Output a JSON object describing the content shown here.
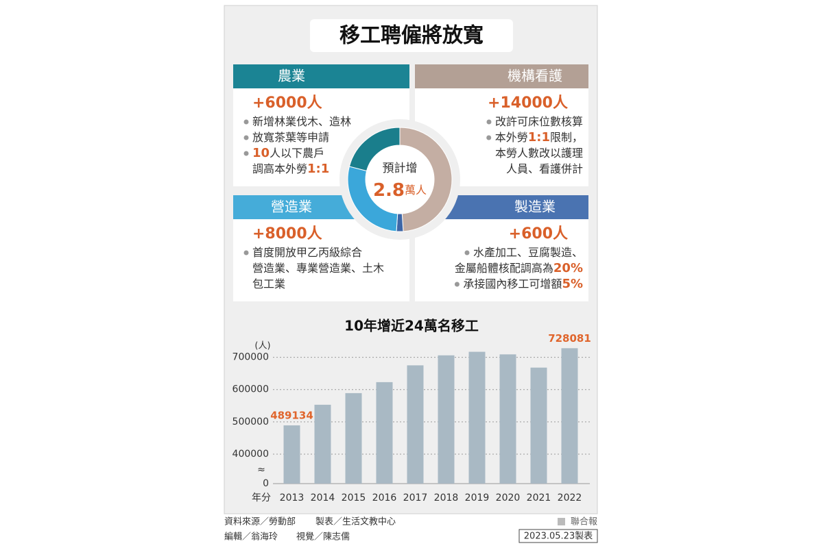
{
  "infographic": {
    "title": "移工聘僱將放寬",
    "donut": {
      "center_label": "預計增",
      "center_value": "2.8",
      "center_unit": "萬人"
    },
    "sectors": [
      {
        "name": "機構看護",
        "position": "top-right",
        "color": "#b3a095",
        "ring_color": "#c4aea3",
        "value": 14000,
        "value_label": "+14000人",
        "lines": [
          {
            "bullet": true,
            "runs": [
              {
                "t": "改許可床位數核算"
              }
            ]
          },
          {
            "bullet": true,
            "runs": [
              {
                "t": "本外勞"
              },
              {
                "t": "1:1",
                "em": true
              },
              {
                "t": "限制，"
              }
            ]
          },
          {
            "bullet": false,
            "runs": [
              {
                "t": "本勞人數改以護理"
              }
            ]
          },
          {
            "bullet": false,
            "runs": [
              {
                "t": "人員、看護併計"
              }
            ]
          }
        ]
      },
      {
        "name": "製造業",
        "position": "bottom-right",
        "color": "#4a73b1",
        "ring_color": "#3e66a6",
        "value": 600,
        "value_label": "+600人",
        "lines": [
          {
            "bullet": true,
            "runs": [
              {
                "t": "水產加工、豆腐製造、"
              }
            ]
          },
          {
            "bullet": false,
            "runs": [
              {
                "t": "金屬船體核配調高為"
              },
              {
                "t": "20%",
                "em": true
              }
            ]
          },
          {
            "bullet": true,
            "runs": [
              {
                "t": "承接國內移工可增額"
              },
              {
                "t": "5%",
                "em": true
              }
            ]
          }
        ]
      },
      {
        "name": "營造業",
        "position": "bottom-left",
        "color": "#45acd9",
        "ring_color": "#3ba7da",
        "value": 8000,
        "value_label": "+8000人",
        "lines": [
          {
            "bullet": true,
            "runs": [
              {
                "t": "首度開放甲乙丙級綜合"
              }
            ]
          },
          {
            "bullet": false,
            "runs": [
              {
                "t": "營造業、專業營造業、土木"
              }
            ]
          },
          {
            "bullet": false,
            "runs": [
              {
                "t": "包工業"
              }
            ]
          }
        ]
      },
      {
        "name": "農業",
        "position": "top-left",
        "color": "#1b8494",
        "ring_color": "#1a7e8c",
        "value": 6000,
        "value_label": "+6000人",
        "lines": [
          {
            "bullet": true,
            "runs": [
              {
                "t": "新增林業伐木、造林"
              }
            ]
          },
          {
            "bullet": true,
            "runs": [
              {
                "t": "放寬茶葉等申請"
              }
            ]
          },
          {
            "bullet": true,
            "runs": [
              {
                "t": "10",
                "em": true
              },
              {
                "t": "人以下農戶"
              }
            ]
          },
          {
            "bullet": false,
            "runs": [
              {
                "t": "調高本外勞"
              },
              {
                "t": "1:1",
                "em": true
              }
            ]
          }
        ]
      }
    ]
  },
  "chart_data": {
    "type": "bar",
    "title": "10年增近24萬名移工",
    "y_unit": "(人)",
    "x_label": "年分",
    "axis_break_label": "≈",
    "categories": [
      "2013",
      "2014",
      "2015",
      "2016",
      "2017",
      "2018",
      "2019",
      "2020",
      "2021",
      "2022"
    ],
    "values": [
      489134,
      553000,
      589000,
      623000,
      675000,
      706000,
      717000,
      709000,
      668000,
      728081
    ],
    "value_labels": "ends",
    "color": "#a9b9c4",
    "label_color": "#e0652c",
    "ylim": [
      0,
      750000
    ],
    "axis_break": [
      0,
      400000
    ],
    "yticks": [
      0,
      400000,
      500000,
      600000,
      700000
    ],
    "grid": true
  },
  "footer": {
    "source": "資料來源／勞動部",
    "made_by": "製表／生活文教中心",
    "editor": "編輯／翁海玲",
    "visual": "視覺／陳志儒",
    "publisher": "聯合報",
    "date": "2023.05.23製表"
  }
}
